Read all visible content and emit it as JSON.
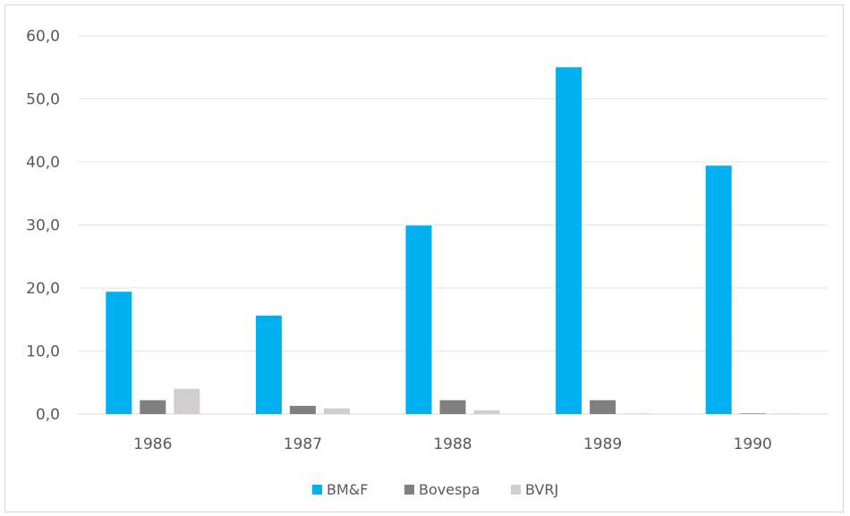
{
  "chart_data": {
    "type": "bar",
    "title": "",
    "xlabel": "",
    "ylabel": "",
    "categories": [
      "1986",
      "1987",
      "1988",
      "1989",
      "1990"
    ],
    "series": [
      {
        "name": "BM&F",
        "color": "#00B0F0",
        "values": [
          19.4,
          15.6,
          29.9,
          55.0,
          39.4
        ]
      },
      {
        "name": "Bovespa",
        "color": "#808080",
        "values": [
          2.2,
          1.3,
          2.2,
          2.2,
          0.1
        ]
      },
      {
        "name": "BVRJ",
        "color": "#D0CECE",
        "values": [
          4.0,
          0.9,
          0.6,
          0.1,
          0.1
        ]
      }
    ],
    "ylim": [
      0,
      60
    ],
    "yticks": [
      "0,0",
      "10,0",
      "20,0",
      "30,0",
      "40,0",
      "50,0",
      "60,0"
    ],
    "grid": true,
    "legend_position": "bottom"
  }
}
